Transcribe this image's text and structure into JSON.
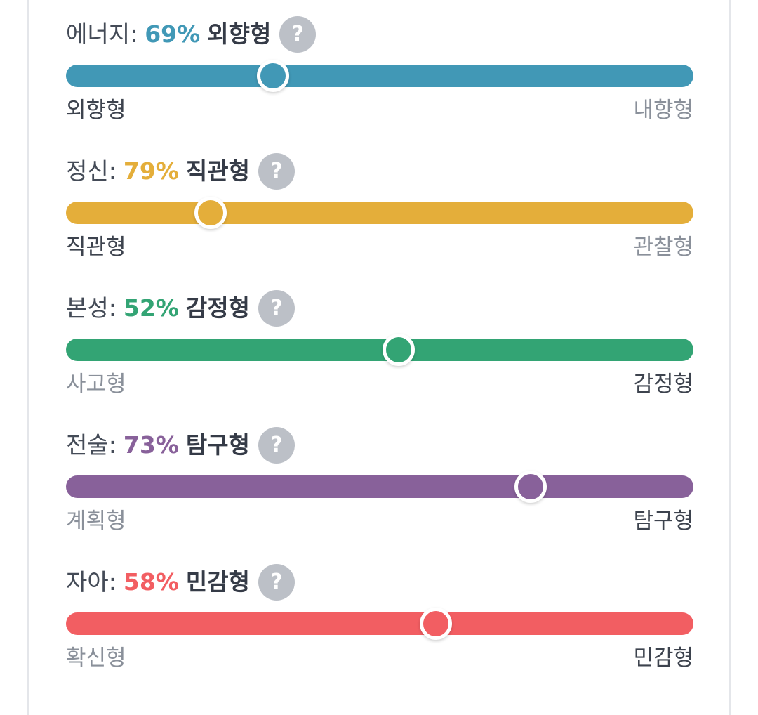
{
  "colors": {
    "energy": "#4198b6",
    "mind": "#e4ae3a",
    "nature": "#33a474",
    "tactics": "#88619a",
    "identity": "#f25e62"
  },
  "traits": [
    {
      "name": "에너지",
      "colon": ":",
      "percent": "69%",
      "type": "외향형",
      "left_label": "외향형",
      "right_label": "내향형",
      "active_side": "left",
      "color": "#4198b6",
      "position_fraction": 0.33,
      "help_icon": "question-icon"
    },
    {
      "name": "정신",
      "colon": ":",
      "percent": "79%",
      "type": "직관형",
      "left_label": "직관형",
      "right_label": "관찰형",
      "active_side": "left",
      "color": "#e4ae3a",
      "position_fraction": 0.23,
      "help_icon": "question-icon"
    },
    {
      "name": "본성",
      "colon": ":",
      "percent": "52%",
      "type": "감정형",
      "left_label": "사고형",
      "right_label": "감정형",
      "active_side": "right",
      "color": "#33a474",
      "position_fraction": 0.53,
      "help_icon": "question-icon"
    },
    {
      "name": "전술",
      "colon": ":",
      "percent": "73%",
      "type": "탐구형",
      "left_label": "계획형",
      "right_label": "탐구형",
      "active_side": "right",
      "color": "#88619a",
      "position_fraction": 0.74,
      "help_icon": "question-icon"
    },
    {
      "name": "자아",
      "colon": ":",
      "percent": "58%",
      "type": "민감형",
      "left_label": "확신형",
      "right_label": "민감형",
      "active_side": "right",
      "color": "#f25e62",
      "position_fraction": 0.59,
      "help_icon": "question-icon"
    }
  ],
  "help_symbol": "?"
}
